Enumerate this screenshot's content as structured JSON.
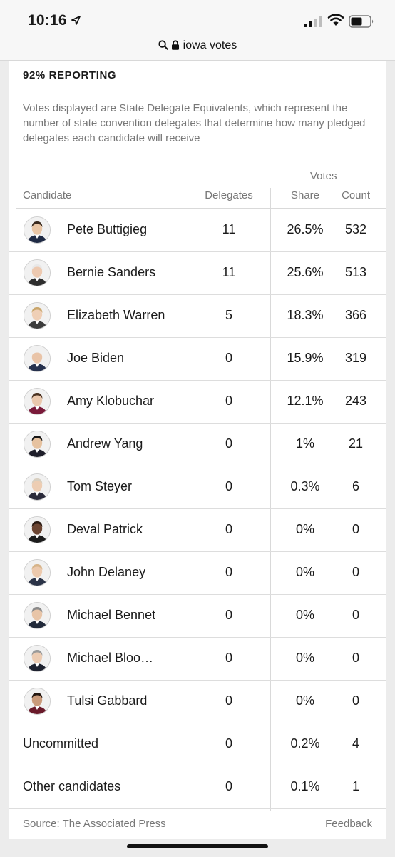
{
  "status_bar": {
    "time": "10:16"
  },
  "browser": {
    "url_text": "iowa votes"
  },
  "results": {
    "reporting": "92% REPORTING",
    "note": "Votes displayed are State Delegate Equivalents, which represent the number of state convention delegates that determine how many pledged delegates each candidate will receive",
    "headers": {
      "votes": "Votes",
      "candidate": "Candidate",
      "delegates": "Delegates",
      "share": "Share",
      "count": "Count"
    },
    "rows": [
      {
        "name": "Pete Buttigieg",
        "delegates": "11",
        "share": "26.5%",
        "count": "532",
        "skin": "#e9c6a6",
        "hair": "#3a2a1e",
        "suit": "#1f2a44"
      },
      {
        "name": "Bernie Sanders",
        "delegates": "11",
        "share": "25.6%",
        "count": "513",
        "skin": "#edc9b0",
        "hair": "#e8e8e8",
        "suit": "#2e2e2e"
      },
      {
        "name": "Elizabeth Warren",
        "delegates": "5",
        "share": "18.3%",
        "count": "366",
        "skin": "#efcfb6",
        "hair": "#c9a66b",
        "suit": "#3b3b3b"
      },
      {
        "name": "Joe Biden",
        "delegates": "0",
        "share": "15.9%",
        "count": "319",
        "skin": "#e9c4a8",
        "hair": "#f1f1f1",
        "suit": "#26314d"
      },
      {
        "name": "Amy Klobuchar",
        "delegates": "0",
        "share": "12.1%",
        "count": "243",
        "skin": "#eac8ad",
        "hair": "#4a3222",
        "suit": "#7a1a3a"
      },
      {
        "name": "Andrew Yang",
        "delegates": "0",
        "share": "1%",
        "count": "21",
        "skin": "#e6c2a0",
        "hair": "#151515",
        "suit": "#1e1e2a"
      },
      {
        "name": "Tom Steyer",
        "delegates": "0",
        "share": "0.3%",
        "count": "6",
        "skin": "#edcdb3",
        "hair": "#d8cfc0",
        "suit": "#2a2a3a"
      },
      {
        "name": "Deval Patrick",
        "delegates": "0",
        "share": "0%",
        "count": "0",
        "skin": "#6b4431",
        "hair": "#2a1a12",
        "suit": "#1c1c1c"
      },
      {
        "name": "John Delaney",
        "delegates": "0",
        "share": "0%",
        "count": "0",
        "skin": "#ecc9ad",
        "hair": "#d6b48a",
        "suit": "#2b3448"
      },
      {
        "name": "Michael Bennet",
        "delegates": "0",
        "share": "0%",
        "count": "0",
        "skin": "#e8c5a8",
        "hair": "#8a8a8a",
        "suit": "#222a3a"
      },
      {
        "name": "Michael Bloo…",
        "delegates": "0",
        "share": "0%",
        "count": "0",
        "skin": "#ecccb3",
        "hair": "#9a9a9a",
        "suit": "#1e2230"
      },
      {
        "name": "Tulsi Gabbard",
        "delegates": "0",
        "share": "0%",
        "count": "0",
        "skin": "#c99a7a",
        "hair": "#231610",
        "suit": "#6a1a2a"
      },
      {
        "name": "Uncommitted",
        "delegates": "0",
        "share": "0.2%",
        "count": "4"
      },
      {
        "name": "Other candidates",
        "delegates": "0",
        "share": "0.1%",
        "count": "1"
      }
    ],
    "source": "Source: The Associated Press",
    "feedback": "Feedback"
  }
}
